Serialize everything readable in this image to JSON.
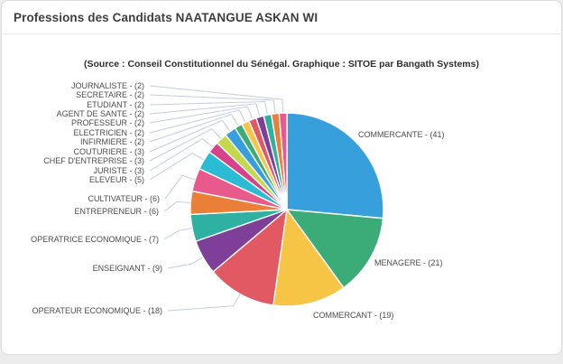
{
  "window": {
    "title": "Professions des Candidats NAATANGUE ASKAN WI"
  },
  "chart": {
    "subtitle": "(Source : Conseil Constitutionnel du Sénégal. Graphique : SITOE par Bangath Systems)"
  },
  "chart_data": {
    "type": "pie",
    "title": "Professions des Candidats NAATANGUE ASKAN WI",
    "source_note": "(Source : Conseil Constitutionnel du Sénégal. Graphique : SITOE par Bangath Systems)",
    "total": 155,
    "start_angle_deg": 0,
    "direction": "clockwise",
    "label_format": "{name} - ({value})",
    "legend_position": "outside-labels-with-leader-lines",
    "slices": [
      {
        "name": "COMMERCANTE",
        "value": 41,
        "color": "#369FDC"
      },
      {
        "name": "MENAGERE",
        "value": 21,
        "color": "#3BAC77"
      },
      {
        "name": "COMMERCANT",
        "value": 19,
        "color": "#F6C545"
      },
      {
        "name": "OPERATEUR ECONOMIQUE",
        "value": 18,
        "color": "#E15A63"
      },
      {
        "name": "ENSEIGNANT",
        "value": 9,
        "color": "#7E3F98"
      },
      {
        "name": "OPERATRICE ECONOMIQUE",
        "value": 7,
        "color": "#2EB1A1"
      },
      {
        "name": "ENTREPRENEUR",
        "value": 6,
        "color": "#EA7F38"
      },
      {
        "name": "CULTIVATEUR",
        "value": 6,
        "color": "#E85A8C"
      },
      {
        "name": "ELEVEUR",
        "value": 5,
        "color": "#2ABCD4"
      },
      {
        "name": "JURISTE",
        "value": 3,
        "color": "#D8418C"
      },
      {
        "name": "CHEF D'ENTREPRISE",
        "value": 3,
        "color": "#C3D94B"
      },
      {
        "name": "COUTURIERE",
        "value": 3,
        "color": "#369FDC"
      },
      {
        "name": "INFIRMIERE",
        "value": 2,
        "color": "#3BAC77"
      },
      {
        "name": "ELECTRICIEN",
        "value": 2,
        "color": "#F6C545"
      },
      {
        "name": "PROFESSEUR",
        "value": 2,
        "color": "#E15A63"
      },
      {
        "name": "AGENT DE SANTE",
        "value": 2,
        "color": "#7E3F98"
      },
      {
        "name": "ETUDIANT",
        "value": 2,
        "color": "#2EB1A1"
      },
      {
        "name": "SECRETAIRE",
        "value": 2,
        "color": "#EA7F38"
      },
      {
        "name": "JOURNALISTE",
        "value": 2,
        "color": "#E85A8C"
      }
    ],
    "colors_meta": {
      "leader_line_color": "#c2cde0",
      "slice_border_color": "#ffffff"
    }
  }
}
